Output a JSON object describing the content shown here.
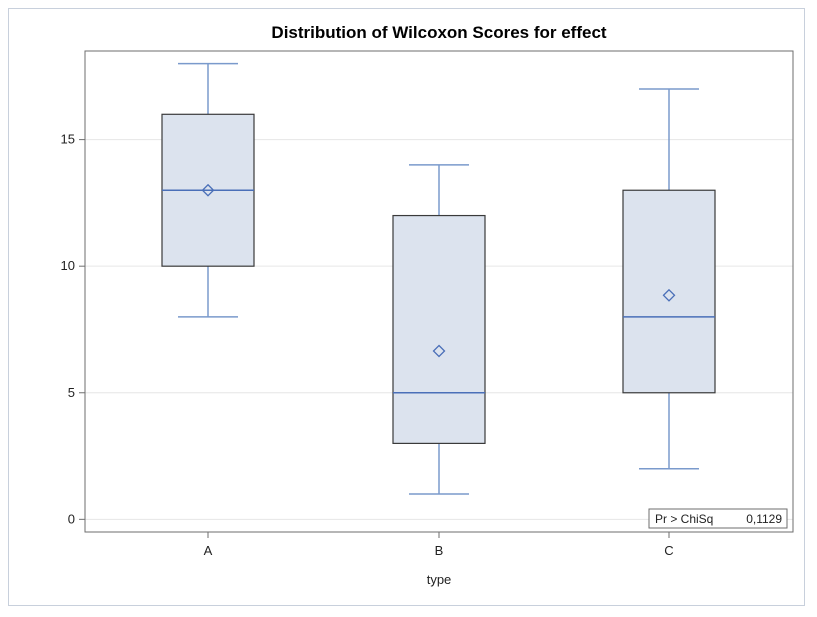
{
  "chart_data": {
    "type": "boxplot",
    "title": "Distribution of Wilcoxon Scores for effect",
    "xlabel": "type",
    "ylabel": "",
    "categories": [
      "A",
      "B",
      "C"
    ],
    "boxes": [
      {
        "category": "A",
        "min": 8,
        "q1": 10,
        "median": 13,
        "q3": 16,
        "max": 18,
        "mean": 13.0
      },
      {
        "category": "B",
        "min": 1,
        "q1": 3,
        "median": 5,
        "q3": 12,
        "max": 14,
        "mean": 6.65
      },
      {
        "category": "C",
        "min": 2,
        "q1": 5,
        "median": 8,
        "q3": 13,
        "max": 17,
        "mean": 8.85
      }
    ],
    "yticks": [
      0,
      5,
      10,
      15
    ],
    "ylim": [
      -0.5,
      18.5
    ],
    "grid": true,
    "inset": {
      "label": "Pr > ChiSq",
      "value": "0,1129"
    },
    "colors": {
      "box_fill": "#dce3ee",
      "box_edge": "#3a3a3a",
      "median_line": "#4a6fb8",
      "whisker": "#7a9acc",
      "mean_marker": "#4a6fb8",
      "grid": "#e6e6e6"
    }
  }
}
